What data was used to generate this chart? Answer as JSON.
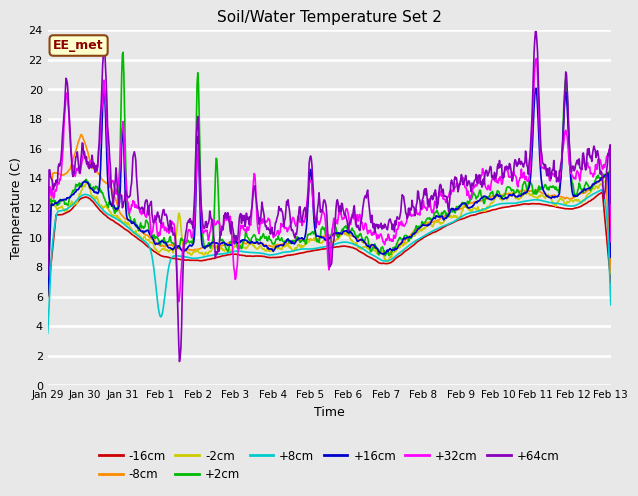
{
  "title": "Soil/Water Temperature Set 2",
  "xlabel": "Time",
  "ylabel": "Temperature (C)",
  "ylim": [
    0,
    24
  ],
  "fig_bg": "#e8e8e8",
  "grid_color": "#ffffff",
  "annotation_text": "EE_met",
  "annotation_bg": "#ffffcc",
  "annotation_border": "#8b4513",
  "annotation_text_color": "#8b0000",
  "series_colors": {
    "-16cm": "#cc0000",
    "-8cm": "#ff8c00",
    "-2cm": "#cccc00",
    "+2cm": "#00bb00",
    "+8cm": "#00cccc",
    "+16cm": "#0000cc",
    "+32cm": "#ff00ff",
    "+64cm": "#8800bb"
  },
  "xtick_labels": [
    "Jan 29",
    "Jan 30",
    "Jan 31",
    "Feb 1",
    "Feb 2",
    "Feb 3",
    "Feb 4",
    "Feb 5",
    "Feb 6",
    "Feb 7",
    "Feb 8",
    "Feb 9",
    "Feb 10",
    "Feb 11",
    "Feb 12",
    "Feb 13"
  ],
  "ytick_labels": [
    0,
    2,
    4,
    6,
    8,
    10,
    12,
    14,
    16,
    18,
    20,
    22,
    24
  ],
  "legend_order": [
    "-16cm",
    "-8cm",
    "-2cm",
    "+2cm",
    "+8cm",
    "+16cm",
    "+32cm",
    "+64cm"
  ]
}
